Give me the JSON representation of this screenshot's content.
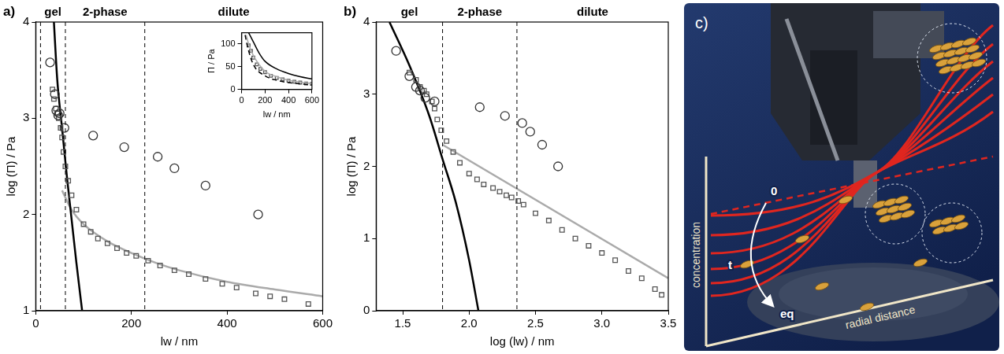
{
  "chart_data": [
    {
      "panel_label": "a)",
      "type": "scatter",
      "x_label": "lw / nm",
      "y_label": "log (Π) / Pa",
      "xlim": [
        0,
        600
      ],
      "xticks": [
        0,
        200,
        400,
        600
      ],
      "ylim": [
        1,
        4
      ],
      "yticks": [
        1,
        2,
        3,
        4
      ],
      "grid": false,
      "regions": [
        {
          "label": "gel",
          "from": 10,
          "to": 62
        },
        {
          "label": "2-phase",
          "from": 62,
          "to": 228
        },
        {
          "label": "dilute",
          "from": 228,
          "to": 600
        }
      ],
      "series": [
        {
          "type": "scatter",
          "marker": "circle",
          "color": "#333333",
          "x": [
            30,
            40,
            43,
            47,
            50,
            60,
            120,
            185,
            255,
            290,
            355,
            465
          ],
          "values": [
            3.58,
            3.25,
            3.08,
            3.03,
            3.05,
            2.9,
            2.82,
            2.7,
            2.6,
            2.48,
            2.3,
            2.0
          ]
        },
        {
          "type": "scatter",
          "marker": "square",
          "color": "#555555",
          "x": [
            35,
            38,
            42,
            45,
            48,
            52,
            55,
            58,
            62,
            68,
            75,
            85,
            100,
            115,
            130,
            150,
            170,
            190,
            210,
            235,
            260,
            290,
            320,
            355,
            390,
            420,
            460,
            490,
            520,
            570
          ],
          "values": [
            3.3,
            3.2,
            3.1,
            3.05,
            3.0,
            2.9,
            2.8,
            2.65,
            2.5,
            2.35,
            2.2,
            2.05,
            1.9,
            1.82,
            1.75,
            1.7,
            1.65,
            1.6,
            1.57,
            1.52,
            1.47,
            1.42,
            1.38,
            1.33,
            1.28,
            1.24,
            1.18,
            1.15,
            1.12,
            1.07
          ]
        },
        {
          "type": "line",
          "line_style": "solid",
          "color": "#000000",
          "x": [
            38,
            45,
            55,
            65,
            75,
            85,
            97
          ],
          "values": [
            4.0,
            3.4,
            2.9,
            2.4,
            1.95,
            1.5,
            1.0
          ]
        },
        {
          "type": "line",
          "line_style": "solid",
          "color": "#aaaaaa",
          "x": [
            55,
            75,
            100,
            150,
            200,
            250,
            300,
            400,
            500,
            600
          ],
          "values": [
            2.25,
            2.05,
            1.9,
            1.72,
            1.6,
            1.5,
            1.42,
            1.3,
            1.22,
            1.15
          ]
        }
      ],
      "inset": {
        "type": "scatter",
        "x_label": "lw / nm",
        "y_label": "Π / Pa",
        "xlim": [
          0,
          600
        ],
        "xticks": [
          0,
          200,
          400,
          600
        ],
        "ylim": [
          0,
          125
        ],
        "yticks": [
          0,
          50,
          100
        ],
        "grid": false,
        "series": [
          {
            "type": "line",
            "line_style": "solid",
            "color": "#000000",
            "x": [
              60,
              100,
              150,
              200,
              300,
              400,
              500,
              600
            ],
            "values": [
              125,
              105,
              80,
              62,
              45,
              35,
              28,
              23
            ]
          },
          {
            "type": "line",
            "line_style": "dashed",
            "color": "#000000",
            "x": [
              30,
              50,
              100,
              200,
              300,
              400,
              600
            ],
            "values": [
              120,
              95,
              55,
              30,
              20,
              15,
              10
            ]
          },
          {
            "type": "line",
            "line_style": "solid",
            "color": "#aaaaaa",
            "x": [
              40,
              60,
              100,
              200,
              300,
              400,
              600
            ],
            "values": [
              120,
              100,
              75,
              40,
              28,
              20,
              13
            ]
          },
          {
            "type": "scatter",
            "marker": "square",
            "color": "#555555",
            "x": [
              60,
              80,
              100,
              130,
              160,
              200,
              250,
              300,
              350,
              400,
              450,
              500,
              550,
              600
            ],
            "values": [
              97,
              85,
              70,
              55,
              45,
              38,
              30,
              25,
              22,
              19,
              17,
              15,
              13,
              12
            ]
          }
        ]
      }
    },
    {
      "panel_label": "b)",
      "type": "scatter",
      "x_label": "log (lw) / nm",
      "y_label": "log (Π) / Pa",
      "xlim": [
        1.3,
        3.5
      ],
      "xticks": [
        1.5,
        {
          "value": 2,
          "label": "2.0"
        },
        2.5,
        {
          "value": 3,
          "label": "3.0"
        },
        3.5
      ],
      "ylim": [
        0,
        4
      ],
      "yticks": [
        0,
        1,
        2,
        3,
        4
      ],
      "grid": false,
      "regions": [
        {
          "label": "gel",
          "from": 1.3,
          "to": 1.8
        },
        {
          "label": "2-phase",
          "from": 1.8,
          "to": 2.36
        },
        {
          "label": "dilute",
          "from": 2.36,
          "to": 3.5
        }
      ],
      "series": [
        {
          "type": "scatter",
          "marker": "circle",
          "color": "#333333",
          "x": [
            1.45,
            1.55,
            1.6,
            1.63,
            1.67,
            1.74,
            2.08,
            2.27,
            2.4,
            2.46,
            2.55,
            2.67
          ],
          "values": [
            3.6,
            3.25,
            3.1,
            3.05,
            2.95,
            2.9,
            2.82,
            2.7,
            2.6,
            2.48,
            2.3,
            2.0
          ]
        },
        {
          "type": "scatter",
          "marker": "square",
          "color": "#555555",
          "x": [
            1.55,
            1.6,
            1.63,
            1.66,
            1.68,
            1.72,
            1.74,
            1.76,
            1.79,
            1.83,
            1.88,
            1.93,
            2.0,
            2.06,
            2.11,
            2.18,
            2.23,
            2.28,
            2.32,
            2.37,
            2.41,
            2.5,
            2.6,
            2.7,
            2.8,
            2.9,
            3.0,
            3.1,
            3.2,
            3.3,
            3.4,
            3.45
          ],
          "values": [
            3.3,
            3.2,
            3.1,
            3.05,
            3.0,
            2.9,
            2.8,
            2.65,
            2.5,
            2.35,
            2.2,
            2.05,
            1.9,
            1.82,
            1.75,
            1.7,
            1.65,
            1.6,
            1.57,
            1.52,
            1.47,
            1.35,
            1.25,
            1.12,
            1.0,
            0.9,
            0.8,
            0.7,
            0.55,
            0.45,
            0.3,
            0.22
          ]
        },
        {
          "type": "line",
          "line_style": "solid",
          "color": "#000000",
          "x": [
            1.4,
            1.55,
            1.7,
            1.8,
            1.9,
            2.0,
            2.07
          ],
          "values": [
            4.0,
            3.4,
            2.7,
            2.1,
            1.5,
            0.7,
            0.0
          ]
        },
        {
          "type": "line",
          "line_style": "solid",
          "color": "#aaaaaa",
          "x": [
            1.8,
            3.5
          ],
          "values": [
            2.3,
            0.45
          ]
        }
      ]
    }
  ],
  "diagram": {
    "panel_label": "c)",
    "axes": {
      "y": "concentration",
      "x": "radial distance"
    },
    "curve_labels": {
      "start": "0",
      "middle": "t",
      "end": "eq"
    }
  }
}
